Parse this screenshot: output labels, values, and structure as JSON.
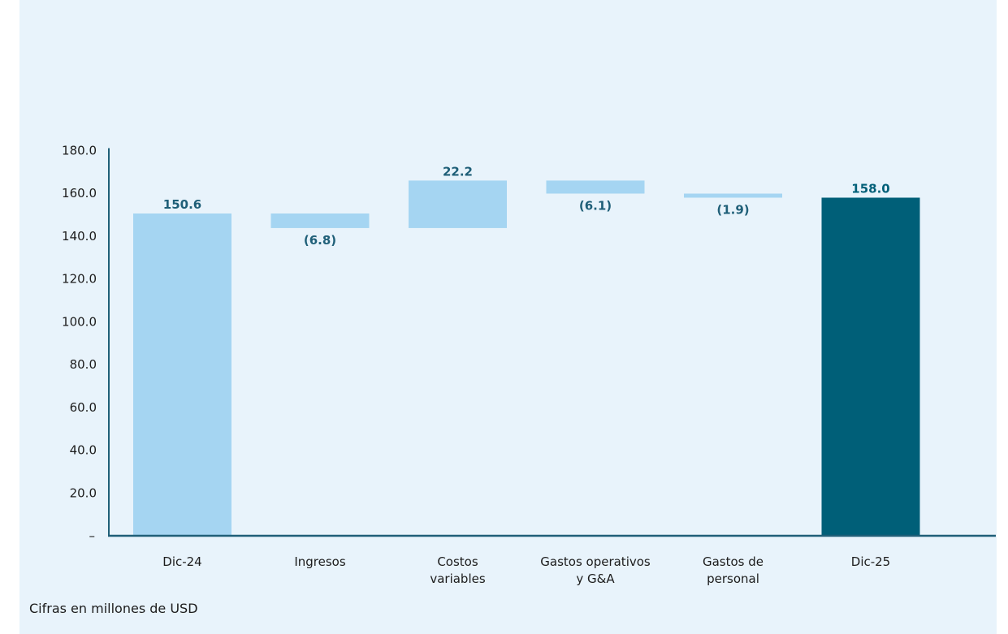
{
  "chart_data": {
    "type": "bar",
    "subtype": "waterfall",
    "categories": [
      "Dic-24",
      "Ingresos",
      "Costos variables",
      "Gastos operativos y G&A",
      "Gastos de personal",
      "Dic-25"
    ],
    "category_lines": [
      [
        "Dic-24"
      ],
      [
        "Ingresos"
      ],
      [
        "Costos",
        "variables"
      ],
      [
        "Gastos operativos",
        "y G&A"
      ],
      [
        "Gastos de",
        "personal"
      ],
      [
        "Dic-25"
      ]
    ],
    "bars": [
      {
        "kind": "total",
        "start": 0,
        "end": 150.6,
        "value": 150.6,
        "label": "150.6",
        "label_position": "above"
      },
      {
        "kind": "delta",
        "start": 150.6,
        "end": 143.8,
        "value": -6.8,
        "label": "(6.8)",
        "label_position": "below"
      },
      {
        "kind": "delta",
        "start": 143.8,
        "end": 166.0,
        "value": 22.2,
        "label": "22.2",
        "label_position": "above"
      },
      {
        "kind": "delta",
        "start": 166.0,
        "end": 159.9,
        "value": -6.1,
        "label": "(6.1)",
        "label_position": "below"
      },
      {
        "kind": "delta",
        "start": 159.9,
        "end": 158.0,
        "value": -1.9,
        "label": "(1.9)",
        "label_position": "below"
      },
      {
        "kind": "total",
        "start": 0,
        "end": 158.0,
        "value": 158.0,
        "label": "158.0",
        "label_position": "above"
      }
    ],
    "y_ticks": [
      0,
      20,
      40,
      60,
      80,
      100,
      120,
      140,
      160,
      180
    ],
    "y_tick_labels": [
      "–",
      "20.0",
      "40.0",
      "60.0",
      "80.0",
      "100.0",
      "120.0",
      "140.0",
      "160.0",
      "180.0"
    ],
    "ylim": [
      0,
      180
    ],
    "grid": false,
    "colors": {
      "light_bar": "#a5d5f2",
      "total_bar_final": "#005f78",
      "axis": "#1f5f78",
      "data_label": "#1f5f78",
      "final_label": "#005f78",
      "background": "#e8f3fb"
    }
  },
  "footnote": "Cifras en millones de USD"
}
